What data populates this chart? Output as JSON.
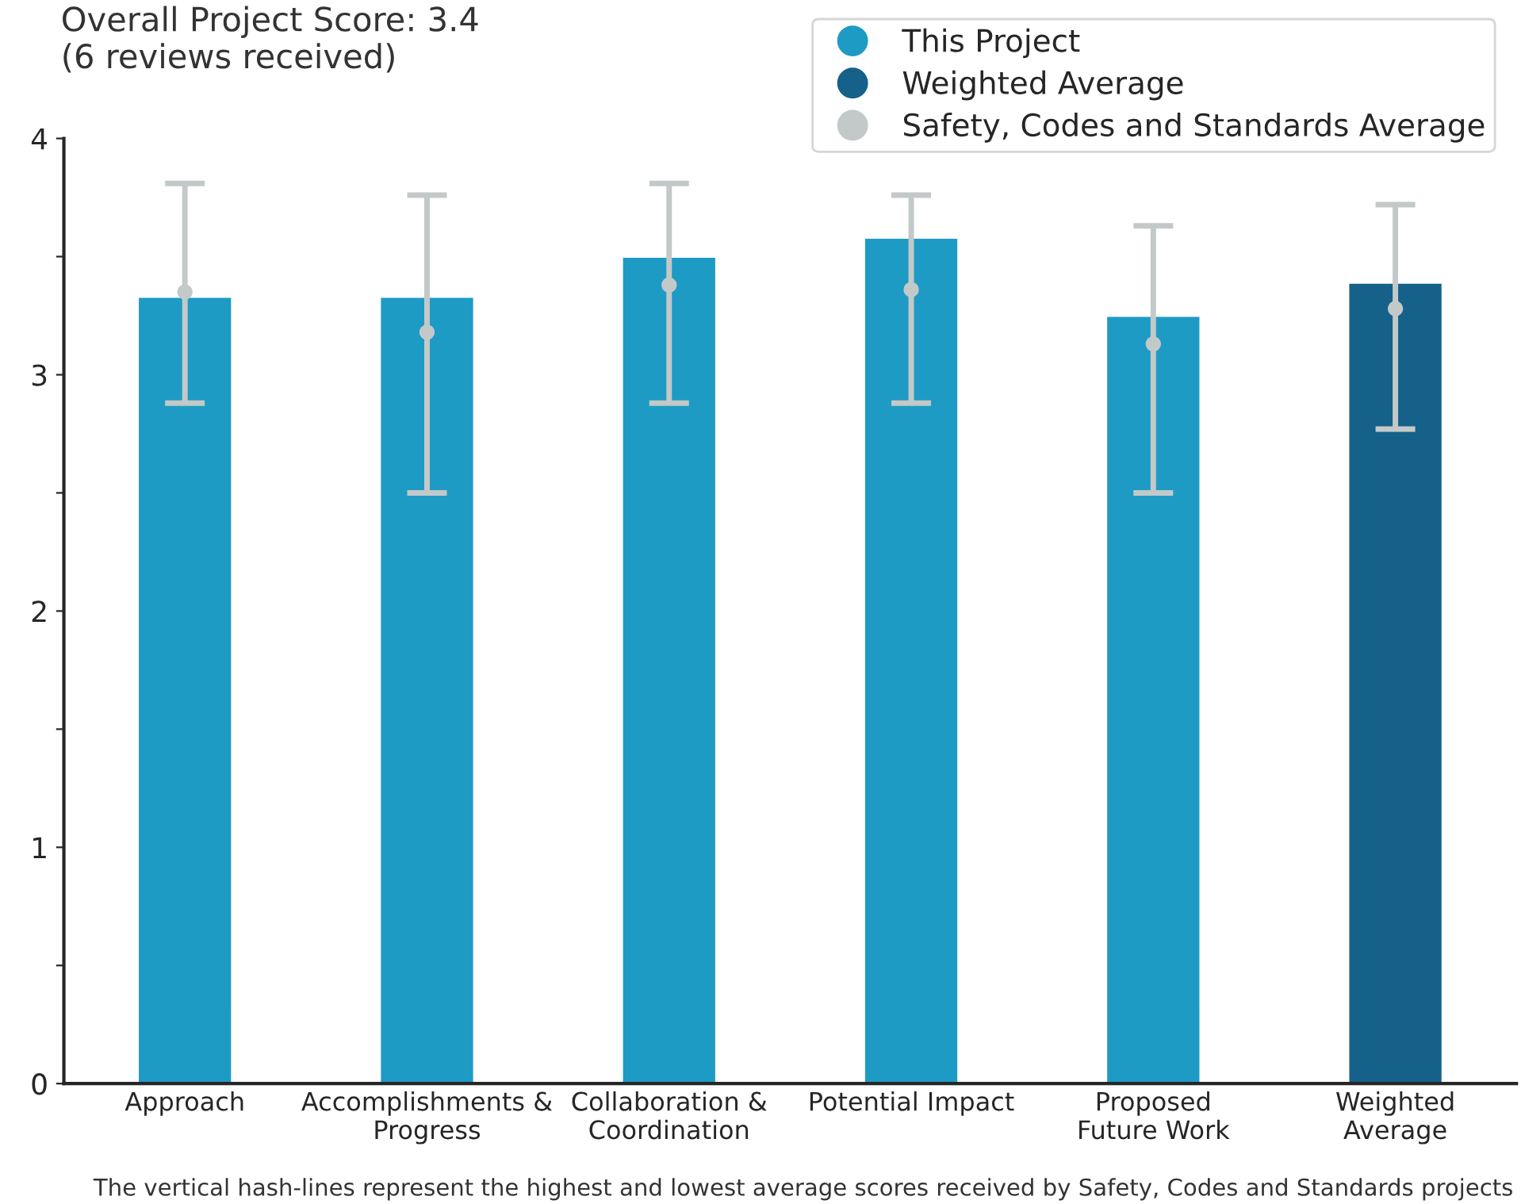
{
  "chart_data": {
    "type": "bar",
    "title": "Overall Project Score: 3.4\n(6 reviews received)",
    "categories": [
      "Approach",
      "Accomplishments &\nProgress",
      "Collaboration &\nCoordination",
      "Potential Impact",
      "Proposed\nFuture Work",
      "Weighted\nAverage"
    ],
    "series": [
      {
        "name": "This Project",
        "color": "#1e9bc5",
        "values": [
          3.33,
          3.33,
          3.5,
          3.58,
          3.25,
          null
        ]
      },
      {
        "name": "Weighted Average",
        "color": "#156189",
        "values": [
          null,
          null,
          null,
          null,
          null,
          3.39
        ]
      },
      {
        "name": "Safety, Codes and Standards Average",
        "type": "scatter",
        "color": "#c3c9c9",
        "values": [
          3.35,
          3.18,
          3.38,
          3.36,
          3.13,
          3.28
        ],
        "errors": [
          [
            2.88,
            3.81
          ],
          [
            2.5,
            3.76
          ],
          [
            2.88,
            3.81
          ],
          [
            2.88,
            3.76
          ],
          [
            2.5,
            3.63
          ],
          [
            2.77,
            3.72
          ]
        ]
      }
    ],
    "ylim": [
      0,
      4
    ],
    "yticks": [
      0,
      {
        "value": 0.5,
        "label": null
      },
      1,
      {
        "value": 1.5,
        "label": null
      },
      2,
      {
        "value": 2.5,
        "label": null
      },
      3,
      {
        "value": 3.5,
        "label": null
      },
      4
    ],
    "legend": "top right",
    "grid": false,
    "marker": "circle",
    "annotations": [
      "The vertical hash-lines represent the highest and lowest average scores received by Safety, Codes and Standards projects"
    ]
  }
}
